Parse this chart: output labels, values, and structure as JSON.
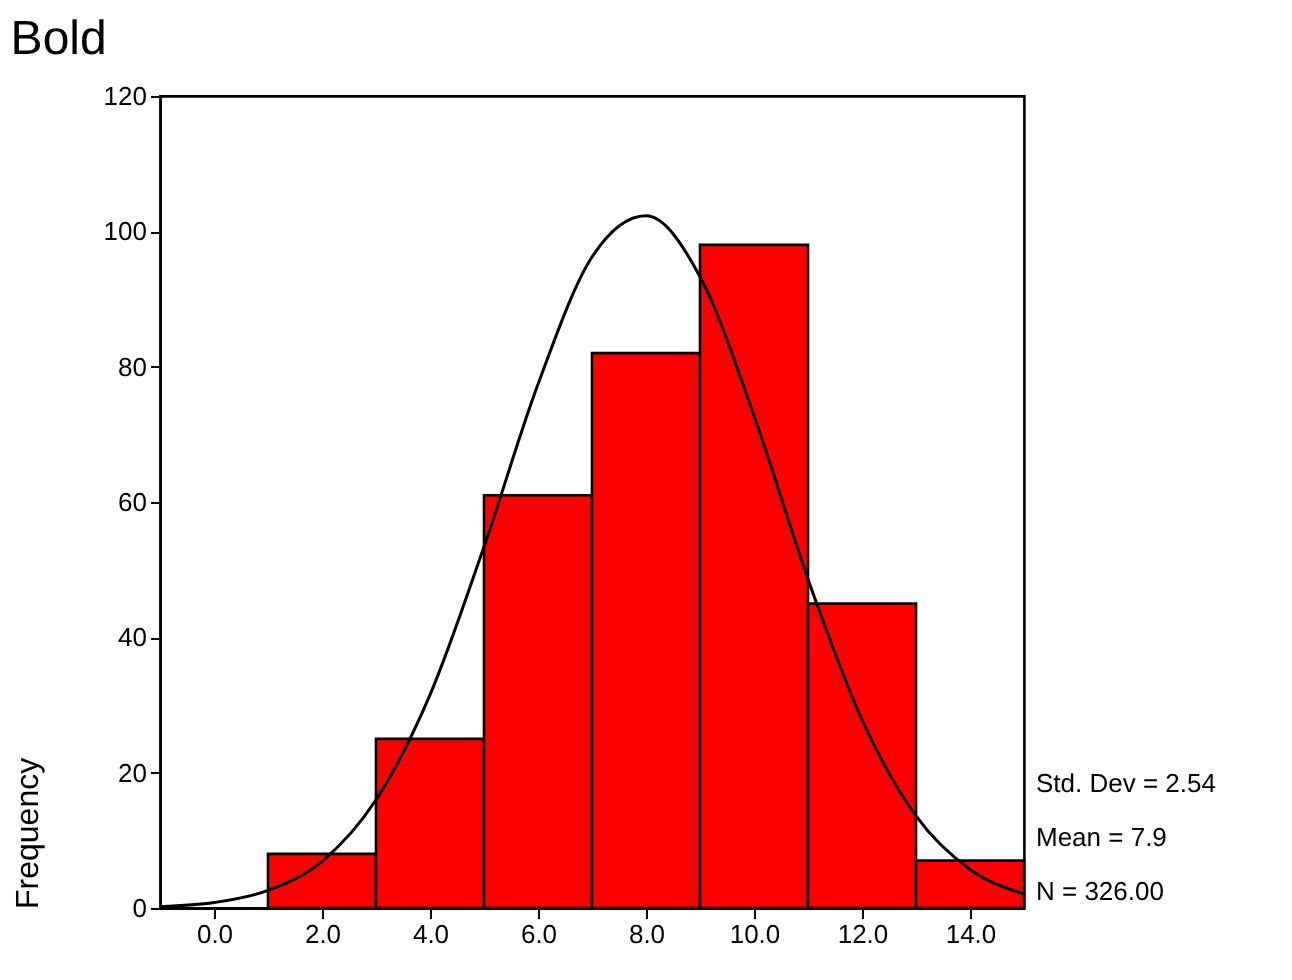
{
  "chart_data": {
    "type": "histogram",
    "title": "Bold",
    "ylabel": "Frequency",
    "bins": [
      1,
      3,
      5,
      7,
      9,
      11,
      13,
      15
    ],
    "values": [
      8,
      25,
      61,
      82,
      98,
      45,
      7
    ],
    "color": "#ff0000",
    "series": [
      {
        "type": "line",
        "color": "#000000",
        "x": [
          -1,
          0,
          1,
          2,
          3,
          4,
          5,
          6,
          7,
          8,
          9,
          10,
          11,
          12,
          13,
          14,
          15
        ],
        "values": [
          0.2,
          0.8,
          2.6,
          6.9,
          16,
          31.5,
          53.4,
          77.4,
          96.2,
          102.3,
          93.3,
          72.7,
          48.6,
          27.8,
          13.6,
          5.7,
          2.1
        ]
      }
    ],
    "xlim": [
      -1,
      15
    ],
    "xticks": [
      {
        "value": 0,
        "label": "0.0"
      },
      {
        "value": 2,
        "label": "2.0"
      },
      {
        "value": 4,
        "label": "4.0"
      },
      {
        "value": 6,
        "label": "6.0"
      },
      {
        "value": 8,
        "label": "8.0"
      },
      {
        "value": 10,
        "label": "10.0"
      },
      {
        "value": 12,
        "label": "12.0"
      },
      {
        "value": 14,
        "label": "14.0"
      }
    ],
    "ylim": [
      0,
      120
    ],
    "yticks": [
      0,
      20,
      40,
      60,
      80,
      100,
      120
    ],
    "grid": false,
    "annotations": [
      "Std. Dev = 2.54",
      "Mean = 7.9",
      "N = 326.00"
    ]
  }
}
